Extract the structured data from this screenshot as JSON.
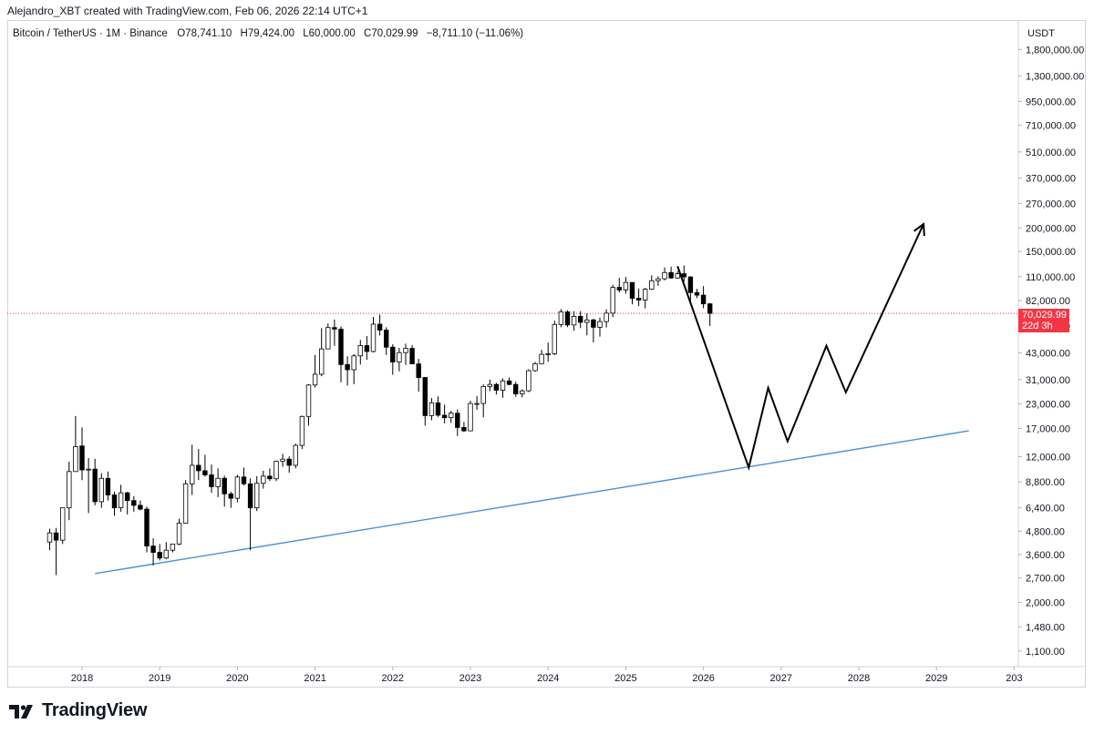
{
  "header": {
    "attribution": "Alejandro_XBT created with TradingView.com, Feb 06, 2026 22:14 UTC+1"
  },
  "legend": {
    "symbol": "Bitcoin / TetherUS · 1M · Binance",
    "o_label": "O",
    "o_value": "78,741.10",
    "h_label": "H",
    "h_value": "79,424.00",
    "l_label": "L",
    "l_value": "60,000.00",
    "c_label": "C",
    "c_value": "70,029.99",
    "change": "−8,711.10 (−11.06%)"
  },
  "price_axis": {
    "currency": "USDT",
    "labels": [
      "1,800,000.00",
      "1,300,000.00",
      "950,000.00",
      "710,000.00",
      "510,000.00",
      "370,000.00",
      "270,000.00",
      "200,000.00",
      "150,000.00",
      "110,000.00",
      "82,000.00",
      "60,000.00",
      "43,000.00",
      "31,000.00",
      "23,000.00",
      "17,000.00",
      "12,000.00",
      "8,800.00",
      "6,400.00",
      "4,800.00",
      "3,600.00",
      "2,700.00",
      "2,000.00",
      "1,480.00",
      "1,100.00"
    ],
    "last_price": "70,029.99",
    "countdown": "22d 3h"
  },
  "time_axis": {
    "labels": [
      "2018",
      "2019",
      "2020",
      "2021",
      "2022",
      "2023",
      "2024",
      "2025",
      "2026",
      "2027",
      "2028",
      "2029",
      "203"
    ]
  },
  "brand": {
    "logo_text": "TradingView"
  },
  "colors": {
    "up_candle_fill": "#ffffff",
    "down_candle_fill": "#000000",
    "candle_outline": "#000000",
    "trendline": "#4a90d9",
    "projection": "#000000",
    "last_price_line": "#f23645",
    "last_price_tag": "#f23645"
  },
  "chart_data": {
    "type": "candlestick",
    "title": "Bitcoin / TetherUS · 1M · Binance",
    "scale": "log",
    "ylim": [
      1000,
      2000000
    ],
    "xlim": [
      "2017-07",
      "2030-01"
    ],
    "grid": false,
    "candles": [
      [
        "2017-08",
        4200,
        4950,
        3800,
        4700
      ],
      [
        "2017-09",
        4700,
        5000,
        2800,
        4300
      ],
      [
        "2017-10",
        4300,
        6400,
        4100,
        6400
      ],
      [
        "2017-11",
        6400,
        11300,
        5500,
        10000
      ],
      [
        "2017-12",
        10000,
        19800,
        10000,
        13600
      ],
      [
        "2018-01",
        13700,
        17200,
        9000,
        10200
      ],
      [
        "2018-02",
        10200,
        11800,
        6000,
        10300
      ],
      [
        "2018-03",
        10300,
        11700,
        6600,
        6900
      ],
      [
        "2018-04",
        6900,
        9800,
        6400,
        9200
      ],
      [
        "2018-05",
        9200,
        10000,
        7000,
        7500
      ],
      [
        "2018-06",
        7500,
        7800,
        5800,
        6400
      ],
      [
        "2018-07",
        6400,
        8500,
        6100,
        7700
      ],
      [
        "2018-08",
        7700,
        7800,
        5900,
        7000
      ],
      [
        "2018-09",
        7000,
        7400,
        6100,
        6600
      ],
      [
        "2018-10",
        6600,
        7000,
        6200,
        6300
      ],
      [
        "2018-11",
        6300,
        6500,
        3700,
        4000
      ],
      [
        "2018-12",
        4000,
        4400,
        3150,
        3700
      ],
      [
        "2019-01",
        3700,
        4100,
        3350,
        3450
      ],
      [
        "2019-02",
        3450,
        4200,
        3400,
        3800
      ],
      [
        "2019-03",
        3800,
        4100,
        3700,
        4100
      ],
      [
        "2019-04",
        4100,
        5600,
        4050,
        5300
      ],
      [
        "2019-05",
        5300,
        9000,
        5300,
        8600
      ],
      [
        "2019-06",
        8600,
        13900,
        7500,
        10800
      ],
      [
        "2019-07",
        10800,
        13200,
        9000,
        10100
      ],
      [
        "2019-08",
        10100,
        12300,
        9400,
        9600
      ],
      [
        "2019-09",
        9600,
        10900,
        7700,
        8300
      ],
      [
        "2019-10",
        8300,
        10400,
        7300,
        9200
      ],
      [
        "2019-11",
        9200,
        9500,
        6500,
        7600
      ],
      [
        "2019-12",
        7600,
        7800,
        6400,
        7200
      ],
      [
        "2020-01",
        7200,
        9600,
        6850,
        9350
      ],
      [
        "2020-02",
        9350,
        10500,
        8450,
        8600
      ],
      [
        "2020-03",
        8600,
        9200,
        3800,
        6400
      ],
      [
        "2020-04",
        6400,
        9450,
        6150,
        8650
      ],
      [
        "2020-05",
        8650,
        10100,
        8100,
        9450
      ],
      [
        "2020-06",
        9450,
        10400,
        8900,
        9150
      ],
      [
        "2020-07",
        9150,
        11450,
        8900,
        11350
      ],
      [
        "2020-08",
        11350,
        12450,
        10600,
        11650
      ],
      [
        "2020-09",
        11650,
        12050,
        9850,
        10800
      ],
      [
        "2020-10",
        10800,
        14100,
        10400,
        13800
      ],
      [
        "2020-11",
        13800,
        19900,
        13200,
        19700
      ],
      [
        "2020-12",
        19700,
        29300,
        17600,
        29000
      ],
      [
        "2021-01",
        29000,
        42000,
        28100,
        33100
      ],
      [
        "2021-02",
        33100,
        58400,
        32300,
        45200
      ],
      [
        "2021-03",
        45200,
        61800,
        45000,
        58800
      ],
      [
        "2021-04",
        58800,
        64900,
        47000,
        57700
      ],
      [
        "2021-05",
        57700,
        59600,
        30000,
        37300
      ],
      [
        "2021-06",
        37300,
        41300,
        28800,
        35000
      ],
      [
        "2021-07",
        35000,
        42400,
        29300,
        41500
      ],
      [
        "2021-08",
        41500,
        50500,
        37300,
        47100
      ],
      [
        "2021-09",
        47100,
        52900,
        39600,
        43800
      ],
      [
        "2021-10",
        43800,
        67000,
        43300,
        61300
      ],
      [
        "2021-11",
        61300,
        69000,
        53300,
        57000
      ],
      [
        "2021-12",
        57000,
        59000,
        42000,
        46200
      ],
      [
        "2022-01",
        46200,
        47900,
        32900,
        38500
      ],
      [
        "2022-02",
        38500,
        45800,
        34300,
        43200
      ],
      [
        "2022-03",
        43200,
        48200,
        37100,
        45500
      ],
      [
        "2022-04",
        45500,
        47400,
        37600,
        37600
      ],
      [
        "2022-05",
        37600,
        40000,
        26700,
        31800
      ],
      [
        "2022-06",
        31800,
        32000,
        17600,
        19900
      ],
      [
        "2022-07",
        19900,
        24700,
        18800,
        23300
      ],
      [
        "2022-08",
        23300,
        25200,
        19600,
        20000
      ],
      [
        "2022-09",
        20000,
        22800,
        18100,
        19400
      ],
      [
        "2022-10",
        19400,
        21100,
        18200,
        20500
      ],
      [
        "2022-11",
        20500,
        21500,
        15500,
        17200
      ],
      [
        "2022-12",
        17200,
        18400,
        16300,
        16500
      ],
      [
        "2023-01",
        16500,
        23900,
        16500,
        23100
      ],
      [
        "2023-02",
        23100,
        25300,
        21400,
        23100
      ],
      [
        "2023-03",
        23100,
        29200,
        19500,
        28500
      ],
      [
        "2023-04",
        28500,
        31000,
        26900,
        29200
      ],
      [
        "2023-05",
        29200,
        29800,
        25800,
        27200
      ],
      [
        "2023-06",
        27200,
        31400,
        24800,
        30500
      ],
      [
        "2023-07",
        30500,
        31800,
        28900,
        29200
      ],
      [
        "2023-08",
        29200,
        30200,
        25100,
        26000
      ],
      [
        "2023-09",
        26000,
        27500,
        24900,
        27000
      ],
      [
        "2023-10",
        27000,
        35200,
        26600,
        34600
      ],
      [
        "2023-11",
        34600,
        38500,
        34100,
        37700
      ],
      [
        "2023-12",
        37700,
        44700,
        37600,
        42300
      ],
      [
        "2024-01",
        42300,
        48900,
        38600,
        42600
      ],
      [
        "2024-02",
        42600,
        64000,
        41900,
        61100
      ],
      [
        "2024-03",
        61100,
        73800,
        59000,
        71300
      ],
      [
        "2024-04",
        71300,
        72800,
        59200,
        60700
      ],
      [
        "2024-05",
        60700,
        71900,
        56600,
        67500
      ],
      [
        "2024-06",
        67500,
        72000,
        58400,
        62700
      ],
      [
        "2024-07",
        62700,
        70000,
        53500,
        64600
      ],
      [
        "2024-08",
        64600,
        65600,
        49000,
        59000
      ],
      [
        "2024-09",
        59000,
        66500,
        52600,
        63300
      ],
      [
        "2024-10",
        63300,
        73600,
        58900,
        70200
      ],
      [
        "2024-11",
        70200,
        99600,
        66800,
        96400
      ],
      [
        "2024-12",
        96400,
        108300,
        90500,
        93400
      ],
      [
        "2025-01",
        93400,
        109600,
        89200,
        102400
      ],
      [
        "2025-02",
        102400,
        102500,
        78200,
        84300
      ],
      [
        "2025-03",
        84300,
        95000,
        76600,
        82500
      ],
      [
        "2025-04",
        82500,
        95800,
        74500,
        94200
      ],
      [
        "2025-05",
        94200,
        111900,
        93400,
        104600
      ],
      [
        "2025-06",
        104600,
        110500,
        98200,
        107100
      ],
      [
        "2025-07",
        107100,
        123200,
        105100,
        115700
      ],
      [
        "2025-08",
        115700,
        124400,
        107300,
        108200
      ],
      [
        "2025-09",
        108200,
        117900,
        107200,
        114000
      ],
      [
        "2025-10",
        114000,
        126200,
        103500,
        109600
      ],
      [
        "2025-11",
        109600,
        110600,
        80600,
        90400
      ],
      [
        "2025-12",
        90400,
        94600,
        84400,
        87600
      ],
      [
        "2026-01",
        87600,
        97900,
        74600,
        78700
      ],
      [
        "2026-02",
        78741.1,
        79424.0,
        60000.0,
        70029.99
      ]
    ],
    "last_price": 70029.99,
    "support_line": [
      [
        "2018-03",
        2850
      ],
      [
        "2029-06",
        16500
      ]
    ],
    "projection_path": [
      [
        "2025-09",
        125000
      ],
      [
        "2026-08",
        10500
      ],
      [
        "2026-11",
        28000
      ],
      [
        "2027-02",
        14500
      ],
      [
        "2027-08",
        47000
      ],
      [
        "2027-11",
        26500
      ],
      [
        "2028-11",
        210000
      ]
    ]
  }
}
